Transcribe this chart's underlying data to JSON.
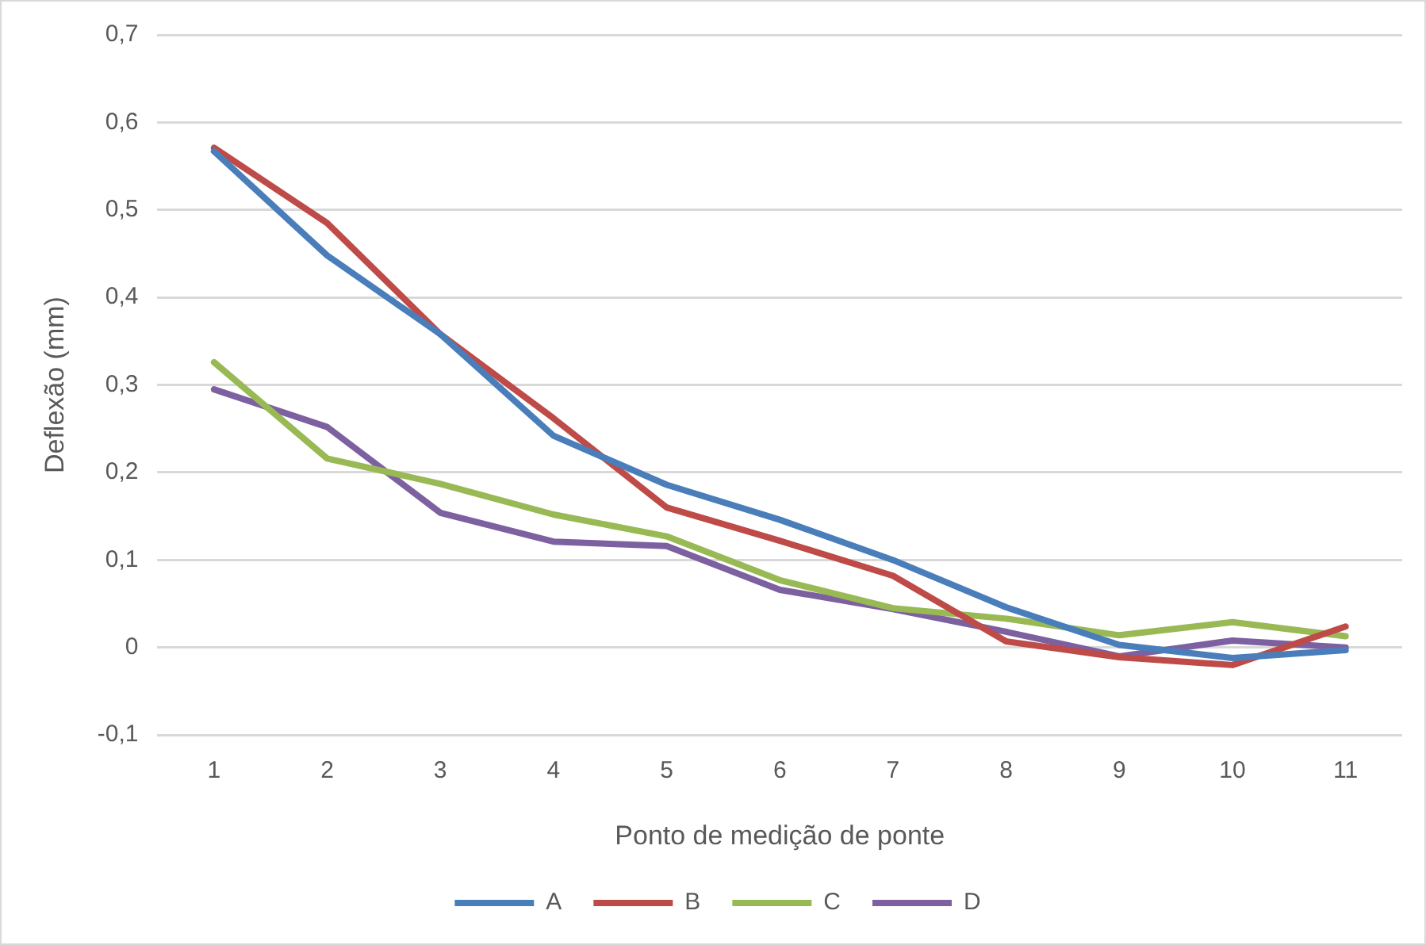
{
  "chart_data": {
    "type": "line",
    "xlabel": "Ponto de medição de ponte",
    "ylabel": "Deflexão (mm)",
    "categories": [
      "1",
      "2",
      "3",
      "4",
      "5",
      "6",
      "7",
      "8",
      "9",
      "10",
      "11"
    ],
    "series": [
      {
        "name": "A",
        "color": "#4a7ebb",
        "values": [
          0.567,
          0.448,
          0.358,
          0.242,
          0.186,
          0.146,
          0.1,
          0.046,
          0.003,
          -0.012,
          -0.003
        ]
      },
      {
        "name": "B",
        "color": "#be4b48",
        "values": [
          0.571,
          0.485,
          0.358,
          0.262,
          0.16,
          0.122,
          0.082,
          0.007,
          -0.011,
          -0.02,
          0.024
        ]
      },
      {
        "name": "C",
        "color": "#98b954",
        "values": [
          0.326,
          0.216,
          0.187,
          0.152,
          0.127,
          0.077,
          0.045,
          0.033,
          0.014,
          0.029,
          0.013
        ]
      },
      {
        "name": "D",
        "color": "#7d60a0",
        "values": [
          0.295,
          0.252,
          0.154,
          0.121,
          0.116,
          0.066,
          0.044,
          0.018,
          -0.01,
          0.008,
          0
        ]
      }
    ],
    "ylim": [
      -0.1,
      0.7
    ],
    "yticks": [
      {
        "value": -0.1,
        "label": "-0,1"
      },
      {
        "value": 0,
        "label": "0"
      },
      {
        "value": 0.1,
        "label": "0,1"
      },
      {
        "value": 0.2,
        "label": "0,2"
      },
      {
        "value": 0.3,
        "label": "0,3"
      },
      {
        "value": 0.4,
        "label": "0,4"
      },
      {
        "value": 0.5,
        "label": "0,5"
      },
      {
        "value": 0.6,
        "label": "0,6"
      },
      {
        "value": 0.7,
        "label": "0,7"
      }
    ],
    "grid": "y",
    "legend": "bottom",
    "marker": "none",
    "line_style": "solid"
  }
}
